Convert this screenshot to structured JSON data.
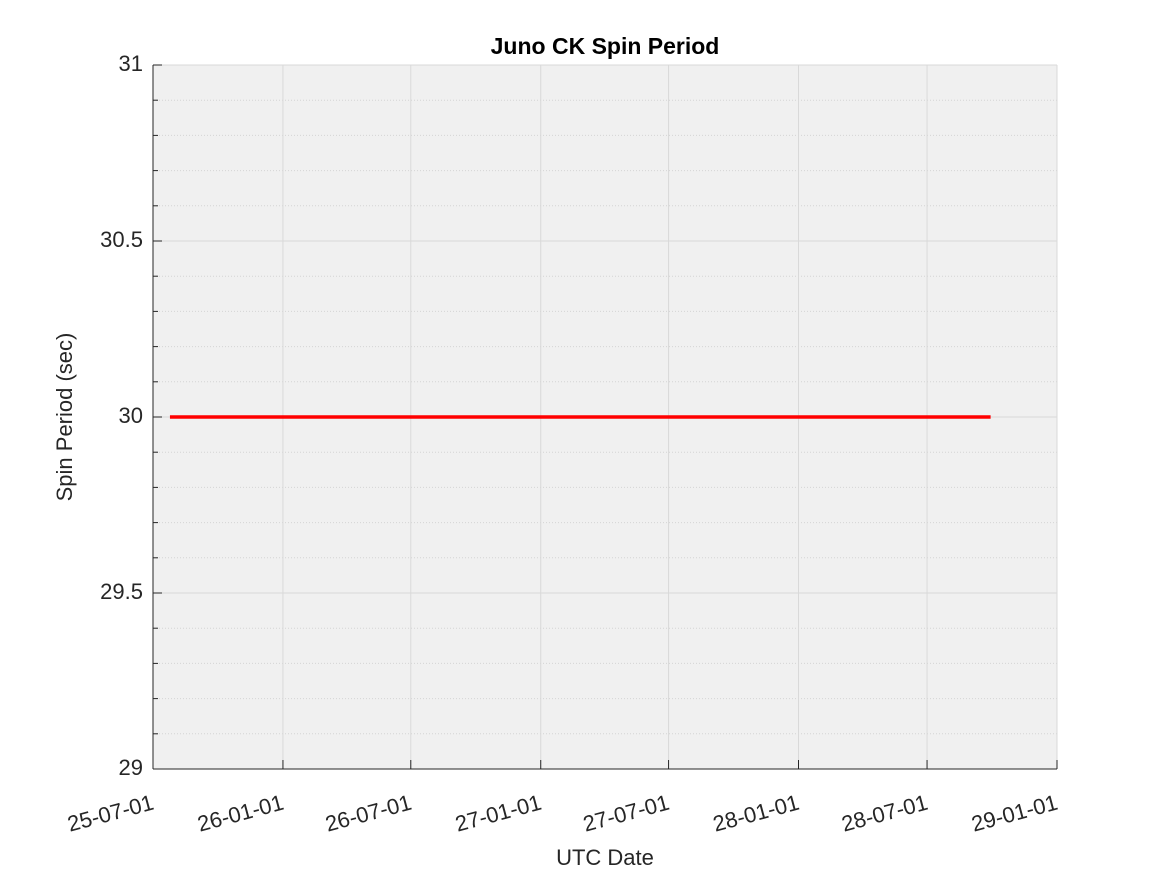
{
  "chart_data": {
    "type": "line",
    "title": "Juno CK Spin Period",
    "xlabel": "UTC Date",
    "ylabel": "Spin Period (sec)",
    "x": [
      "25-07-25",
      "28-09-29"
    ],
    "series": [
      {
        "name": "Spin Period",
        "color": "#ff0000",
        "values": [
          30,
          30
        ]
      }
    ],
    "xlim": [
      "25-07-01",
      "29-01-01"
    ],
    "xticks": [
      "25-07-01",
      "26-01-01",
      "26-07-01",
      "27-01-01",
      "27-07-01",
      "28-01-01",
      "28-07-01",
      "29-01-01"
    ],
    "ylim": [
      29,
      31
    ],
    "yticks": [
      29,
      29.5,
      30,
      30.5,
      31
    ],
    "grid": true,
    "minor_grid": true,
    "legend": false
  }
}
